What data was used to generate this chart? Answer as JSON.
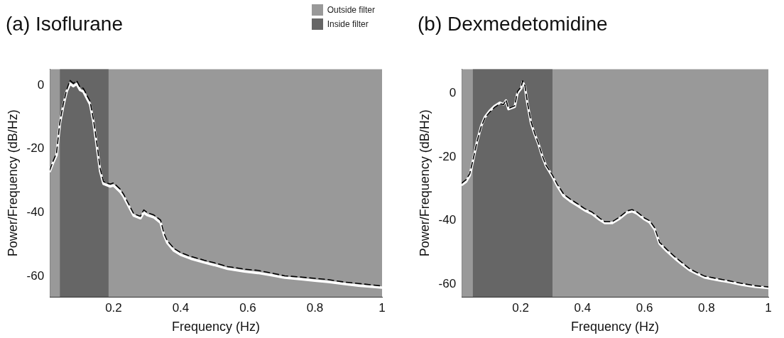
{
  "chart_data": [
    {
      "type": "line",
      "title": "(a) Isoflurane",
      "xlabel": "Frequency (Hz)",
      "ylabel": "Power/Frequency (dB/Hz)",
      "xlim": [
        0.01,
        1
      ],
      "ylim": [
        -66.5,
        5
      ],
      "xticks": [
        0.2,
        0.4,
        0.6,
        0.8,
        1
      ],
      "yticks": [
        -60,
        -40,
        -20,
        0
      ],
      "grid": false,
      "legend": "top right",
      "marker": "none",
      "bands": [
        {
          "axis": "x",
          "from": 0.01,
          "to": 1,
          "label": "Outside filter",
          "color": "#999999"
        },
        {
          "axis": "x",
          "from": 0.04,
          "to": 0.185,
          "label": "Inside filter",
          "color": "#666666"
        }
      ],
      "series": [
        {
          "color": "#ffffff",
          "line_style": "solid",
          "x": [
            0.01,
            0.02,
            0.03,
            0.04,
            0.05,
            0.06,
            0.07,
            0.08,
            0.09,
            0.1,
            0.11,
            0.12,
            0.13,
            0.14,
            0.15,
            0.16,
            0.17,
            0.19,
            0.2,
            0.22,
            0.23,
            0.25,
            0.26,
            0.28,
            0.29,
            0.3,
            0.32,
            0.34,
            0.35,
            0.36,
            0.38,
            0.4,
            0.43,
            0.47,
            0.5,
            0.54,
            0.59,
            0.63,
            0.67,
            0.71,
            0.76,
            0.8,
            0.84,
            0.89,
            0.93,
            1
          ],
          "values": [
            -27,
            -24.3,
            -22,
            -12,
            -6.5,
            -2,
            0.5,
            -0.3,
            0.4,
            -1.5,
            -2,
            -4,
            -6,
            -11.5,
            -19,
            -27,
            -31,
            -31.8,
            -31.5,
            -33.5,
            -35,
            -39,
            -41,
            -41.8,
            -40,
            -40.8,
            -41.5,
            -43.2,
            -47,
            -49.5,
            -52,
            -53.3,
            -54.5,
            -55.7,
            -56.5,
            -57.7,
            -58.5,
            -59,
            -59.7,
            -60.5,
            -61,
            -61.4,
            -61.8,
            -62.5,
            -63,
            -63.6
          ]
        },
        {
          "color": "#000000",
          "line_style": "dashed",
          "x": [
            0.01,
            0.02,
            0.03,
            0.04,
            0.05,
            0.06,
            0.07,
            0.08,
            0.09,
            0.1,
            0.11,
            0.12,
            0.13,
            0.14,
            0.15,
            0.16,
            0.17,
            0.19,
            0.2,
            0.22,
            0.23,
            0.25,
            0.26,
            0.28,
            0.29,
            0.3,
            0.32,
            0.34,
            0.35,
            0.36,
            0.38,
            0.4,
            0.43,
            0.47,
            0.5,
            0.54,
            0.59,
            0.63,
            0.67,
            0.71,
            0.76,
            0.8,
            0.84,
            0.89,
            0.93,
            1
          ],
          "values": [
            -26.6,
            -23.8,
            -21.3,
            -11.6,
            -5.9,
            -1.5,
            1.5,
            0.6,
            1.4,
            -0.6,
            -1,
            -3.1,
            -5.1,
            -10.8,
            -18.1,
            -26.2,
            -30.3,
            -31.1,
            -30.7,
            -32.7,
            -34.3,
            -38.4,
            -40.4,
            -41.2,
            -39.2,
            -40,
            -40.8,
            -42.4,
            -46.5,
            -48.9,
            -51.3,
            -52.6,
            -53.8,
            -55,
            -55.8,
            -57,
            -57.8,
            -58.2,
            -59,
            -59.9,
            -60.3,
            -60.7,
            -61.1,
            -61.9,
            -62.3,
            -63.1
          ]
        }
      ]
    },
    {
      "type": "line",
      "title": "(b) Dexmedetomidine",
      "xlabel": "Frequency (Hz)",
      "ylabel": "Power/Frequency (dB/Hz)",
      "xlim": [
        0.01,
        1
      ],
      "ylim": [
        -64,
        7.5
      ],
      "xticks": [
        0.2,
        0.4,
        0.6,
        0.8,
        1
      ],
      "yticks": [
        -60,
        -40,
        -20,
        0
      ],
      "grid": false,
      "legend": false,
      "marker": "none",
      "bands": [
        {
          "axis": "x",
          "from": 0.01,
          "to": 1,
          "color": "#999999"
        },
        {
          "axis": "x",
          "from": 0.046,
          "to": 0.303,
          "color": "#666666"
        }
      ],
      "series": [
        {
          "color": "#ffffff",
          "line_style": "solid",
          "x": [
            0.01,
            0.024,
            0.036,
            0.048,
            0.06,
            0.073,
            0.085,
            0.101,
            0.117,
            0.133,
            0.145,
            0.153,
            0.161,
            0.181,
            0.19,
            0.202,
            0.207,
            0.214,
            0.222,
            0.234,
            0.246,
            0.258,
            0.27,
            0.282,
            0.302,
            0.319,
            0.339,
            0.359,
            0.383,
            0.407,
            0.431,
            0.456,
            0.472,
            0.496,
            0.52,
            0.544,
            0.56,
            0.577,
            0.601,
            0.617,
            0.633,
            0.649,
            0.673,
            0.698,
            0.722,
            0.746,
            0.77,
            0.794,
            0.835,
            0.875,
            0.915,
            0.956,
            1
          ],
          "values": [
            -28.8,
            -27.8,
            -25.8,
            -20.5,
            -15,
            -10.3,
            -7.5,
            -5.5,
            -4,
            -3,
            -3.5,
            -2.3,
            -5,
            -4.3,
            0,
            1.5,
            3.5,
            2,
            -3.2,
            -9.5,
            -13,
            -16,
            -19.8,
            -22.8,
            -26,
            -29.2,
            -32.3,
            -33.8,
            -35.3,
            -36.8,
            -37.9,
            -39.8,
            -40.8,
            -40.8,
            -39.4,
            -37.5,
            -37.1,
            -37.9,
            -39.7,
            -40.6,
            -42.8,
            -47.3,
            -49.7,
            -51.9,
            -53.8,
            -55.6,
            -56.8,
            -57.9,
            -58.7,
            -59.4,
            -60.2,
            -60.8,
            -61.2
          ]
        },
        {
          "color": "#000000",
          "line_style": "dashed",
          "x": [
            0.01,
            0.024,
            0.036,
            0.048,
            0.06,
            0.073,
            0.085,
            0.101,
            0.117,
            0.133,
            0.145,
            0.153,
            0.161,
            0.181,
            0.19,
            0.202,
            0.207,
            0.214,
            0.222,
            0.234,
            0.246,
            0.258,
            0.27,
            0.282,
            0.302,
            0.319,
            0.339,
            0.359,
            0.383,
            0.407,
            0.431,
            0.456,
            0.472,
            0.496,
            0.52,
            0.544,
            0.56,
            0.577,
            0.601,
            0.617,
            0.633,
            0.649,
            0.673,
            0.698,
            0.722,
            0.746,
            0.77,
            0.794,
            0.835,
            0.875,
            0.915,
            0.956,
            1
          ],
          "values": [
            -28.3,
            -27.2,
            -25.3,
            -20.3,
            -15,
            -10.5,
            -7.8,
            -5.9,
            -4.4,
            -3.3,
            -3.6,
            -2.1,
            -4.8,
            -4,
            0.5,
            2,
            3.9,
            2.4,
            -2.9,
            -9,
            -12.7,
            -15.8,
            -19.6,
            -22.6,
            -25.6,
            -28.7,
            -31.7,
            -33.2,
            -34.7,
            -36.3,
            -37.4,
            -39.3,
            -40.4,
            -40.4,
            -38.9,
            -37,
            -36.6,
            -37.4,
            -39.3,
            -40.1,
            -42.3,
            -46.9,
            -49.2,
            -51.4,
            -53.3,
            -55.2,
            -56.4,
            -57.5,
            -58.3,
            -59,
            -59.8,
            -60.5,
            -60.9
          ]
        }
      ]
    }
  ]
}
